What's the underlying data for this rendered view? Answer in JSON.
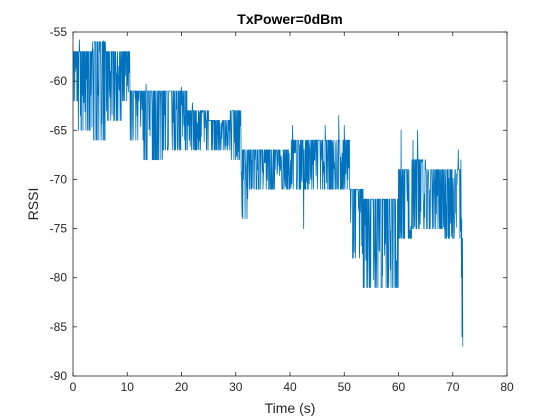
{
  "chart_data": {
    "type": "line",
    "title": "TxPower=0dBm",
    "xlabel": "Time (s)",
    "ylabel": "RSSI",
    "xlim": [
      0,
      80
    ],
    "ylim": [
      -90,
      -55
    ],
    "xticks": [
      0,
      10,
      20,
      30,
      40,
      50,
      60,
      70,
      80
    ],
    "yticks": [
      -90,
      -85,
      -80,
      -75,
      -70,
      -65,
      -60,
      -55
    ],
    "grid": false,
    "line_color": "#0072BD",
    "series": [
      {
        "name": "",
        "segments": [
          {
            "x_start": 0.0,
            "x_end": 1.0,
            "high": -57,
            "low": -62
          },
          {
            "x_start": 1.0,
            "x_end": 3.5,
            "high": -57,
            "low": -65
          },
          {
            "x_start": 3.5,
            "x_end": 6.0,
            "high": -56,
            "low": -66
          },
          {
            "x_start": 6.0,
            "x_end": 9.0,
            "high": -57,
            "low": -64
          },
          {
            "x_start": 9.0,
            "x_end": 10.5,
            "high": -57,
            "low": -62
          },
          {
            "x_start": 10.5,
            "x_end": 13.0,
            "high": -61,
            "low": -66
          },
          {
            "x_start": 13.0,
            "x_end": 16.5,
            "high": -61,
            "low": -68
          },
          {
            "x_start": 16.5,
            "x_end": 21.0,
            "high": -61,
            "low": -67
          },
          {
            "x_start": 21.0,
            "x_end": 25.0,
            "high": -63,
            "low": -67
          },
          {
            "x_start": 25.0,
            "x_end": 29.0,
            "high": -64,
            "low": -67
          },
          {
            "x_start": 29.0,
            "x_end": 31.0,
            "high": -63,
            "low": -68
          },
          {
            "x_start": 31.0,
            "x_end": 32.5,
            "high": -67,
            "low": -74
          },
          {
            "x_start": 32.5,
            "x_end": 36.0,
            "high": -67,
            "low": -71
          },
          {
            "x_start": 36.0,
            "x_end": 40.0,
            "high": -67,
            "low": -71
          },
          {
            "x_start": 40.0,
            "x_end": 43.0,
            "high": -66,
            "low": -71
          },
          {
            "x_start": 43.0,
            "x_end": 47.0,
            "high": -66,
            "low": -71
          },
          {
            "x_start": 47.0,
            "x_end": 51.0,
            "high": -66,
            "low": -71
          },
          {
            "x_start": 51.0,
            "x_end": 53.5,
            "high": -71,
            "low": -78
          },
          {
            "x_start": 53.5,
            "x_end": 57.0,
            "high": -72,
            "low": -81
          },
          {
            "x_start": 57.0,
            "x_end": 60.0,
            "high": -72,
            "low": -81
          },
          {
            "x_start": 60.0,
            "x_end": 62.5,
            "high": -69,
            "low": -76
          },
          {
            "x_start": 62.5,
            "x_end": 65.0,
            "high": -68,
            "low": -75
          },
          {
            "x_start": 65.0,
            "x_end": 68.5,
            "high": -69,
            "low": -75
          },
          {
            "x_start": 68.5,
            "x_end": 71.5,
            "high": -69,
            "low": -76
          }
        ],
        "spikes": [
          {
            "x": 1.2,
            "y": -55.8
          },
          {
            "x": 5.6,
            "y": -55.9
          },
          {
            "x": 13.5,
            "y": -60.3
          },
          {
            "x": 20.0,
            "y": -60.6
          },
          {
            "x": 22.0,
            "y": -62.2
          },
          {
            "x": 31.3,
            "y": -74.0
          },
          {
            "x": 40.5,
            "y": -64.5
          },
          {
            "x": 42.5,
            "y": -75.0
          },
          {
            "x": 46.5,
            "y": -64.5
          },
          {
            "x": 49.0,
            "y": -63.5
          },
          {
            "x": 50.0,
            "y": -64.5
          },
          {
            "x": 60.5,
            "y": -65.0
          },
          {
            "x": 62.7,
            "y": -66.0
          },
          {
            "x": 63.5,
            "y": -65.0
          },
          {
            "x": 71.0,
            "y": -67.0
          }
        ],
        "tail": [
          {
            "x": 71.5,
            "y": -68.0
          },
          {
            "x": 71.6,
            "y": -80.0
          },
          {
            "x": 71.65,
            "y": -74.0
          },
          {
            "x": 71.7,
            "y": -86.0
          },
          {
            "x": 71.8,
            "y": -76.0
          },
          {
            "x": 71.85,
            "y": -87.0
          }
        ]
      }
    ]
  }
}
